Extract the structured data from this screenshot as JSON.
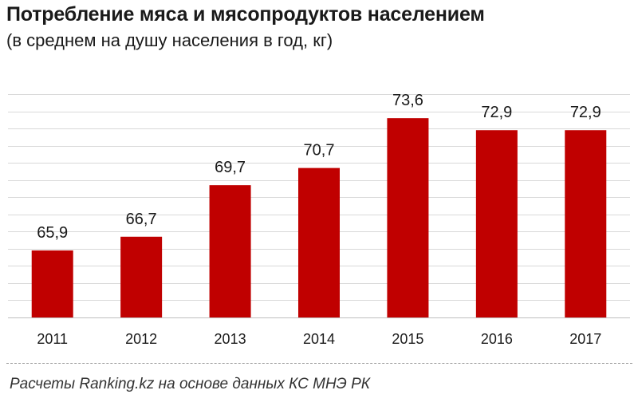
{
  "header": {
    "title": "Потребление мяса и мясопродуктов населением",
    "subtitle": "(в среднем на душу населения в год, кг)"
  },
  "footer": {
    "source": "Расчеты Ranking.kz на основе данных КС МНЭ РК"
  },
  "chart_data": {
    "type": "bar",
    "title": "Потребление мяса и мясопродуктов населением",
    "subtitle": "(в среднем на душу населения в год, кг)",
    "categories": [
      "2011",
      "2012",
      "2013",
      "2014",
      "2015",
      "2016",
      "2017"
    ],
    "values": [
      65.9,
      66.7,
      69.7,
      70.7,
      73.6,
      72.9,
      72.9
    ],
    "value_labels": [
      "65,9",
      "66,7",
      "69,7",
      "70,7",
      "73,6",
      "72,9",
      "72,9"
    ],
    "bar_color": "#c00000",
    "grid_color": "#d9d9d9",
    "grid": true,
    "xlabel": "",
    "ylabel": "",
    "ylim": [
      62,
      75
    ],
    "y_axis_labels_shown": false
  }
}
